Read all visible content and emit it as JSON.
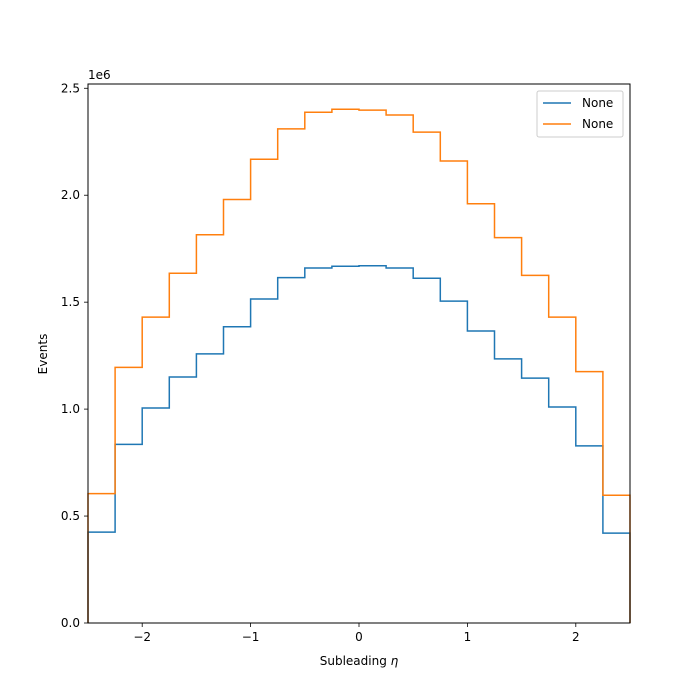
{
  "chart_data": {
    "type": "line",
    "drawstyle": "step-histogram",
    "title": "",
    "xlabel": "Subleading",
    "xlabel_symbol": "η",
    "ylabel": "Events",
    "y_offset_label": "1e6",
    "xlim": [
      -2.5,
      2.5
    ],
    "ylim": [
      0,
      2.52
    ],
    "x_ticks": [
      -2,
      -1,
      0,
      1,
      2
    ],
    "x_tick_labels": [
      "−2",
      "−1",
      "0",
      "1",
      "2"
    ],
    "y_ticks": [
      0.0,
      0.5,
      1.0,
      1.5,
      2.0,
      2.5
    ],
    "y_tick_labels": [
      "0.0",
      "0.5",
      "1.0",
      "1.5",
      "2.0",
      "2.5"
    ],
    "grid": false,
    "legend_position": "top-right",
    "bin_edges": [
      -2.5,
      -2.25,
      -2.0,
      -1.75,
      -1.5,
      -1.25,
      -1.0,
      -0.75,
      -0.5,
      -0.25,
      0.0,
      0.25,
      0.5,
      0.75,
      1.0,
      1.25,
      1.5,
      1.75,
      2.0,
      2.25,
      2.5
    ],
    "series": [
      {
        "name": "None",
        "color": "#1f77b4",
        "values": [
          0.425,
          0.835,
          1.005,
          1.15,
          1.258,
          1.385,
          1.515,
          1.615,
          1.66,
          1.668,
          1.67,
          1.66,
          1.612,
          1.505,
          1.365,
          1.235,
          1.145,
          1.01,
          0.828,
          0.42
        ]
      },
      {
        "name": "None",
        "color": "#ff7f0e",
        "values": [
          0.605,
          1.195,
          1.43,
          1.635,
          1.815,
          1.98,
          2.168,
          2.31,
          2.388,
          2.402,
          2.398,
          2.375,
          2.295,
          2.16,
          1.96,
          1.802,
          1.625,
          1.43,
          1.175,
          0.597
        ]
      }
    ]
  }
}
